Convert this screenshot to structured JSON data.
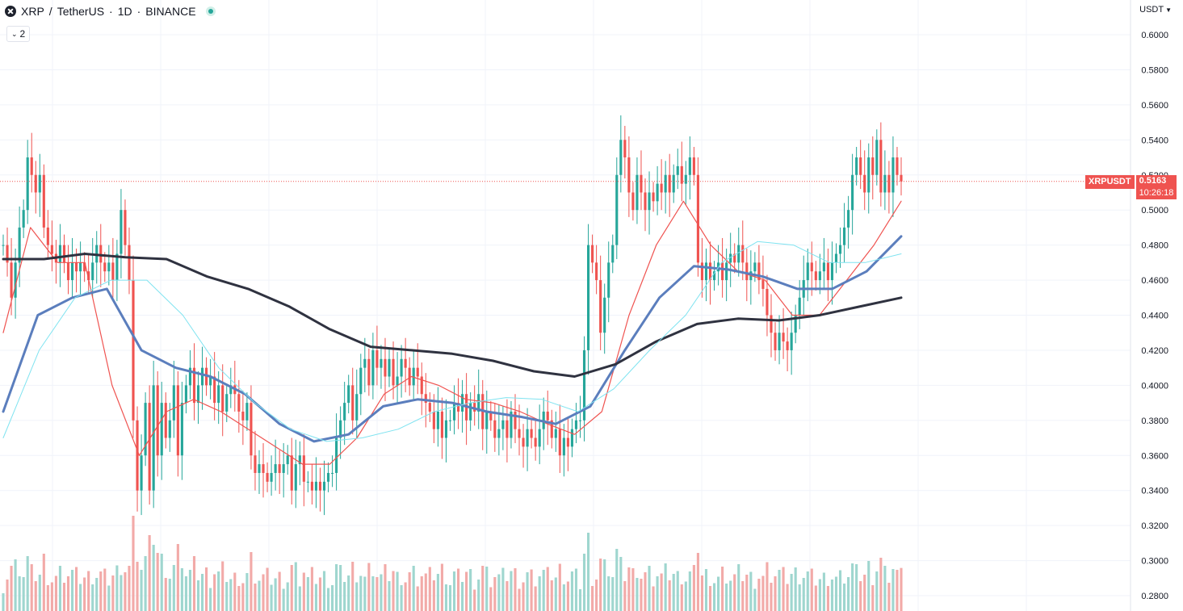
{
  "header": {
    "symbol": "XRP",
    "separator": "/",
    "quote": "TetherUS",
    "interval": "1D",
    "exchange": "BINANCE",
    "indicator_count": "2"
  },
  "axis": {
    "currency": "USDT",
    "price_ticks": [
      "0.6000",
      "0.5800",
      "0.5600",
      "0.5400",
      "0.5200",
      "0.5000",
      "0.4800",
      "0.4600",
      "0.4400",
      "0.4200",
      "0.4000",
      "0.3800",
      "0.3600",
      "0.3400",
      "0.3200",
      "0.3000",
      "0.2800"
    ]
  },
  "last_price": {
    "symbol": "XRPUSDT",
    "value": "0.5163",
    "countdown": "10:26:18"
  },
  "colors": {
    "up": "#26a69a",
    "down": "#ef5350",
    "up_volume": "#9fd6cf",
    "down_volume": "#f2aaa8",
    "ma_short": "#ef5350",
    "ma_mid": "#5b7ebd",
    "ma_long": "#2f3240",
    "ma_cyan": "#7fe3f0"
  },
  "chart_data": {
    "type": "candlestick",
    "symbol": "XRP / TetherUS",
    "interval": "1D",
    "ylim": [
      0.275,
      0.61
    ],
    "yticks": [
      0.28,
      0.3,
      0.32,
      0.34,
      0.36,
      0.38,
      0.4,
      0.42,
      0.44,
      0.46,
      0.48,
      0.5,
      0.52,
      0.54,
      0.56,
      0.58,
      0.6
    ],
    "closes": [
      0.48,
      0.47,
      0.45,
      0.47,
      0.49,
      0.5,
      0.53,
      0.52,
      0.51,
      0.52,
      0.49,
      0.48,
      0.475,
      0.47,
      0.48,
      0.47,
      0.46,
      0.47,
      0.465,
      0.47,
      0.465,
      0.46,
      0.47,
      0.48,
      0.47,
      0.465,
      0.47,
      0.46,
      0.475,
      0.5,
      0.48,
      0.46,
      0.38,
      0.34,
      0.36,
      0.39,
      0.34,
      0.4,
      0.36,
      0.39,
      0.37,
      0.38,
      0.4,
      0.36,
      0.39,
      0.4,
      0.41,
      0.39,
      0.4,
      0.41,
      0.4,
      0.405,
      0.39,
      0.4,
      0.385,
      0.395,
      0.4,
      0.395,
      0.385,
      0.38,
      0.39,
      0.36,
      0.35,
      0.355,
      0.35,
      0.345,
      0.35,
      0.355,
      0.35,
      0.355,
      0.36,
      0.34,
      0.355,
      0.36,
      0.345,
      0.345,
      0.34,
      0.345,
      0.34,
      0.345,
      0.35,
      0.35,
      0.37,
      0.38,
      0.39,
      0.4,
      0.38,
      0.395,
      0.41,
      0.415,
      0.4,
      0.42,
      0.41,
      0.415,
      0.405,
      0.415,
      0.4,
      0.405,
      0.415,
      0.41,
      0.4,
      0.41,
      0.405,
      0.395,
      0.39,
      0.385,
      0.375,
      0.385,
      0.37,
      0.38,
      0.38,
      0.39,
      0.385,
      0.395,
      0.38,
      0.39,
      0.385,
      0.395,
      0.375,
      0.385,
      0.38,
      0.37,
      0.375,
      0.38,
      0.37,
      0.385,
      0.375,
      0.37,
      0.365,
      0.375,
      0.37,
      0.365,
      0.375,
      0.385,
      0.38,
      0.37,
      0.375,
      0.36,
      0.37,
      0.365,
      0.375,
      0.38,
      0.38,
      0.42,
      0.48,
      0.47,
      0.46,
      0.43,
      0.45,
      0.47,
      0.48,
      0.52,
      0.54,
      0.53,
      0.51,
      0.5,
      0.52,
      0.51,
      0.5,
      0.51,
      0.505,
      0.515,
      0.51,
      0.52,
      0.51,
      0.52,
      0.525,
      0.515,
      0.52,
      0.53,
      0.52,
      0.47,
      0.46,
      0.47,
      0.46,
      0.465,
      0.47,
      0.46,
      0.47,
      0.475,
      0.47,
      0.48,
      0.47,
      0.46,
      0.465,
      0.47,
      0.46,
      0.455,
      0.44,
      0.43,
      0.42,
      0.43,
      0.425,
      0.42,
      0.43,
      0.44,
      0.45,
      0.46,
      0.47,
      0.465,
      0.46,
      0.465,
      0.47,
      0.46,
      0.47,
      0.475,
      0.48,
      0.49,
      0.5,
      0.52,
      0.53,
      0.52,
      0.51,
      0.53,
      0.52,
      0.54,
      0.51,
      0.52,
      0.51,
      0.53,
      0.52,
      0.5163
    ],
    "series": [
      {
        "name": "MA short (red)",
        "values": [
          0.43,
          0.49,
          0.47,
          0.47,
          0.4,
          0.36,
          0.385,
          0.392,
          0.385,
          0.375,
          0.365,
          0.355,
          0.355,
          0.37,
          0.395,
          0.405,
          0.4,
          0.392,
          0.39,
          0.385,
          0.378,
          0.372,
          0.385,
          0.44,
          0.48,
          0.505,
          0.48,
          0.465,
          0.46,
          0.44,
          0.44,
          0.46,
          0.48,
          0.505
        ]
      },
      {
        "name": "MA mid (blue)",
        "values": [
          0.385,
          0.44,
          0.45,
          0.455,
          0.42,
          0.41,
          0.405,
          0.395,
          0.378,
          0.368,
          0.372,
          0.388,
          0.392,
          0.39,
          0.385,
          0.382,
          0.378,
          0.388,
          0.42,
          0.45,
          0.468,
          0.466,
          0.462,
          0.455,
          0.455,
          0.465,
          0.485
        ]
      },
      {
        "name": "MA long (black)",
        "values": [
          0.472,
          0.472,
          0.475,
          0.473,
          0.472,
          0.462,
          0.455,
          0.445,
          0.432,
          0.422,
          0.42,
          0.418,
          0.414,
          0.408,
          0.405,
          0.412,
          0.425,
          0.435,
          0.438,
          0.437,
          0.44,
          0.445,
          0.45
        ]
      },
      {
        "name": "MA (cyan)",
        "values": [
          0.37,
          0.42,
          0.45,
          0.46,
          0.46,
          0.44,
          0.41,
          0.39,
          0.375,
          0.368,
          0.37,
          0.375,
          0.385,
          0.39,
          0.393,
          0.392,
          0.385,
          0.398,
          0.42,
          0.44,
          0.47,
          0.482,
          0.48,
          0.47,
          0.47,
          0.475
        ]
      }
    ],
    "last_price": 0.5163
  }
}
